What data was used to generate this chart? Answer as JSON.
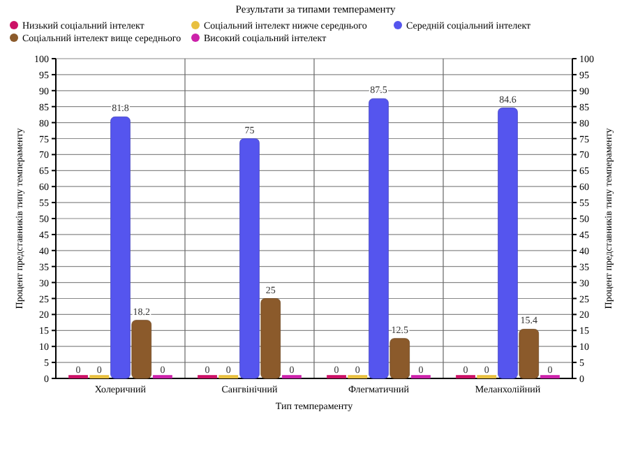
{
  "chart_data": {
    "type": "bar",
    "title": "Результати за типами темпераменту",
    "xlabel": "Тип темпераменту",
    "ylabel": "Процент представників типу темпераменту",
    "y2label": "Процент представників типу темпераменту",
    "categories": [
      "Холеричний",
      "Сангвінічний",
      "Флегматичний",
      "Меланхолійний"
    ],
    "series": [
      {
        "name": "Низький соціальний інтелект",
        "color": "#cc1166",
        "values": [
          0,
          0,
          0,
          0
        ]
      },
      {
        "name": "Соціальний інтелект нижче середнього",
        "color": "#e8c040",
        "values": [
          0,
          0,
          0,
          0
        ]
      },
      {
        "name": "Середній соціальний інтелект",
        "color": "#5555ee",
        "values": [
          81.8,
          75,
          87.5,
          84.6
        ]
      },
      {
        "name": "Соціальний інтелект вище середнього",
        "color": "#8b5a2b",
        "values": [
          18.2,
          25,
          12.5,
          15.4
        ]
      },
      {
        "name": "Високий соціальний інтелект",
        "color": "#cc22aa",
        "values": [
          0,
          0,
          0,
          0
        ]
      }
    ],
    "ylim": [
      0,
      100
    ],
    "yticks": [
      0,
      5,
      10,
      15,
      20,
      25,
      30,
      35,
      40,
      45,
      50,
      55,
      60,
      65,
      70,
      75,
      80,
      85,
      90,
      95,
      100
    ],
    "y2lim": [
      0,
      100
    ],
    "y2ticks": [
      0,
      5,
      10,
      15,
      20,
      25,
      30,
      35,
      40,
      45,
      50,
      55,
      60,
      65,
      70,
      75,
      80,
      85,
      90,
      95,
      100
    ],
    "grid": true,
    "legend": "top left",
    "data_labels": true
  }
}
